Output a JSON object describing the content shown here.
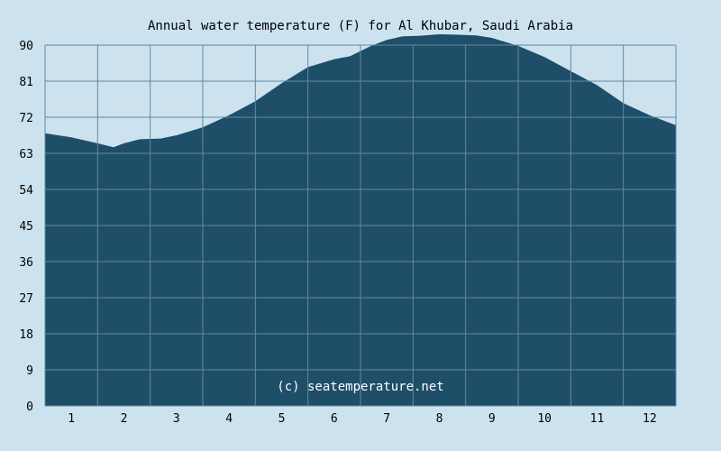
{
  "chart_data": {
    "type": "area",
    "title": "Annual water temperature (F) for Al Khubar, Saudi Arabia",
    "watermark": "(c) seatemperature.net",
    "xlabel": "",
    "ylabel": "",
    "x_tick_labels": [
      "1",
      "2",
      "3",
      "4",
      "5",
      "6",
      "7",
      "8",
      "9",
      "10",
      "11",
      "12"
    ],
    "y_tick_labels": [
      "0",
      "9",
      "18",
      "27",
      "36",
      "45",
      "54",
      "63",
      "72",
      "81",
      "90"
    ],
    "xlim": [
      0.5,
      12.5
    ],
    "ylim": [
      0,
      90
    ],
    "grid": true,
    "series": [
      {
        "x": [
          0.5,
          1.0,
          1.5,
          1.8,
          2.0,
          2.3,
          2.7,
          3.0,
          3.5,
          4.0,
          4.5,
          5.0,
          5.5,
          6.0,
          6.3,
          6.7,
          7.0,
          7.3,
          7.6,
          8.0,
          8.3,
          8.7,
          9.0,
          9.5,
          10.0,
          10.5,
          11.0,
          11.5,
          12.0,
          12.5
        ],
        "values": [
          68,
          67,
          65.5,
          64.5,
          65.5,
          66.5,
          66.7,
          67.5,
          69.5,
          72.5,
          76,
          80.5,
          84.5,
          86.5,
          87.2,
          89.8,
          91.3,
          92.2,
          92.3,
          92.7,
          92.6,
          92.4,
          91.8,
          89.8,
          87,
          83.5,
          80,
          75.5,
          72.5,
          70
        ]
      }
    ],
    "colors": {
      "area": "#1f4e69",
      "grid": "#5f8aa2",
      "page_background": "#cce3ef",
      "watermark": "#ffffff"
    }
  }
}
